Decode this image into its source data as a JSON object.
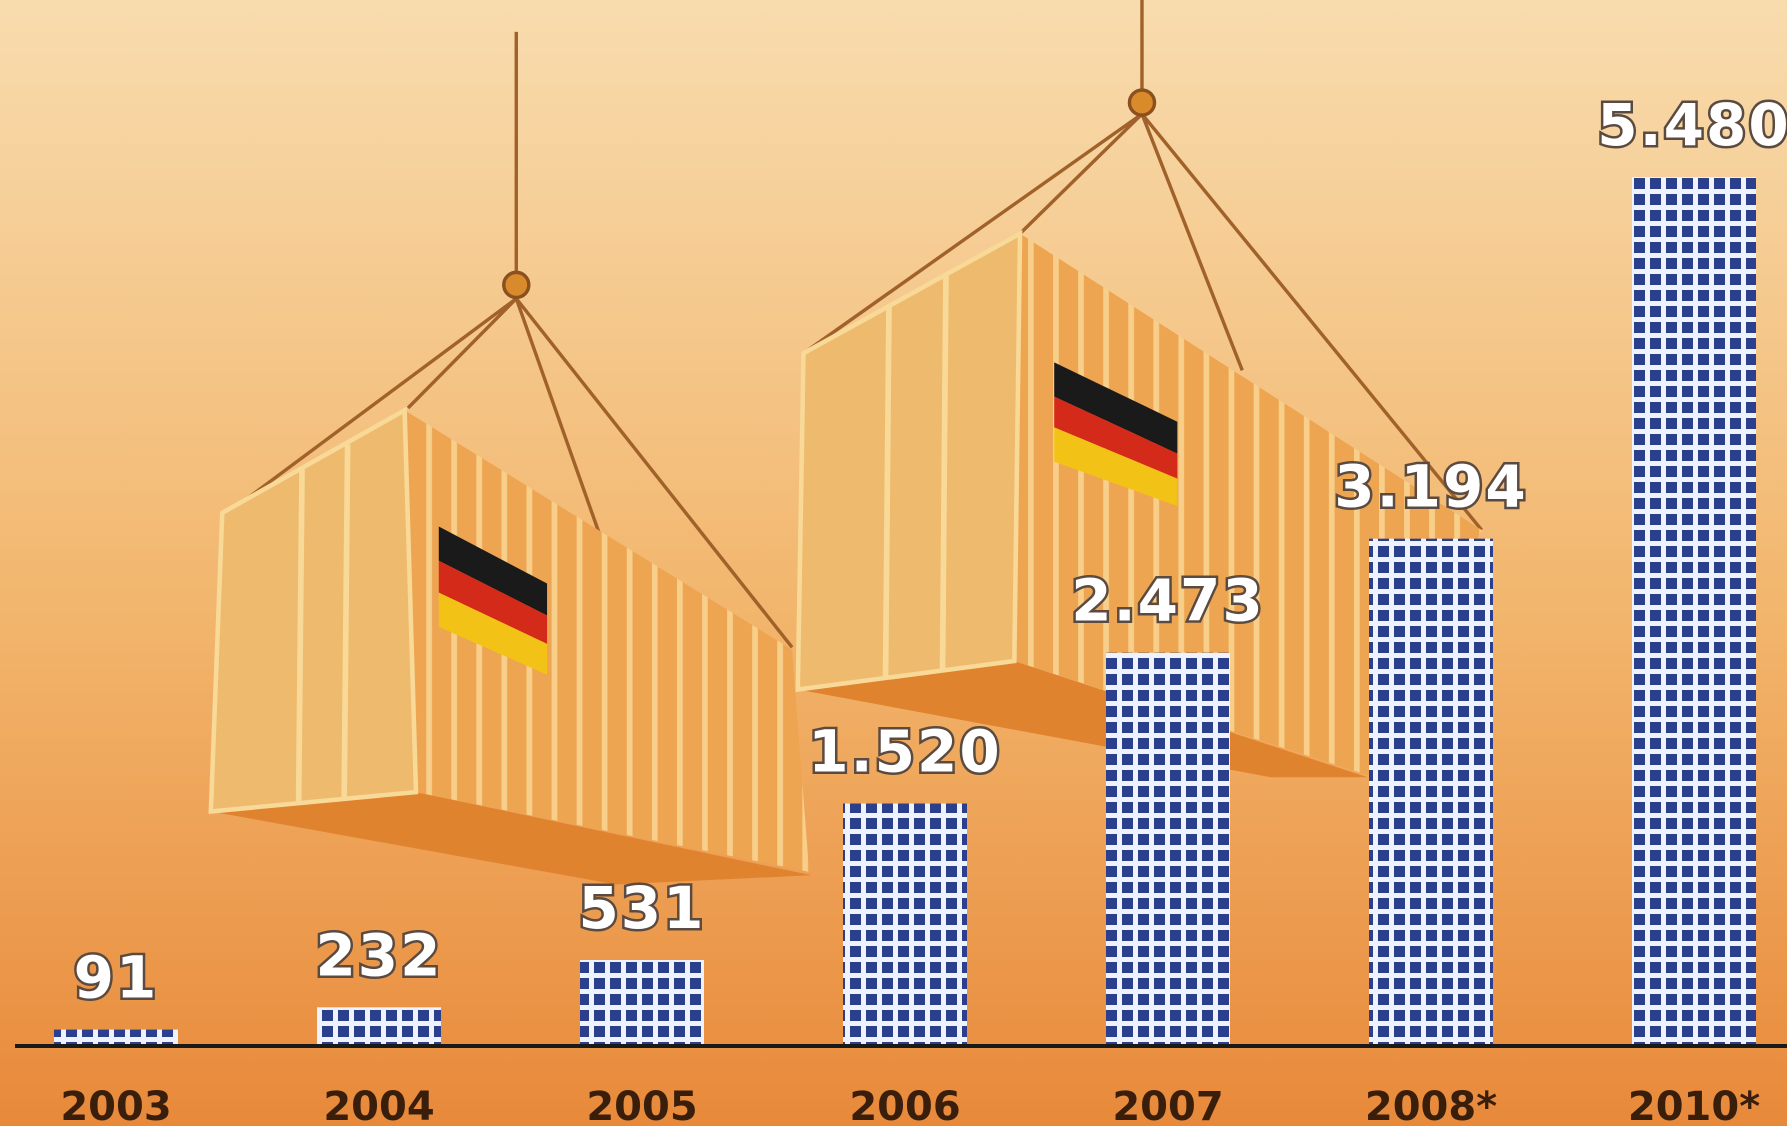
{
  "chart_data": {
    "type": "bar",
    "categories": [
      "2003",
      "2004",
      "2005",
      "2006",
      "2007",
      "2008*",
      "2010*"
    ],
    "values": [
      91,
      232,
      531,
      1520,
      2473,
      3194,
      5480
    ],
    "value_labels": [
      "91",
      "232",
      "531",
      "1.520",
      "2.473",
      "3.194",
      "5.480"
    ]
  }
}
